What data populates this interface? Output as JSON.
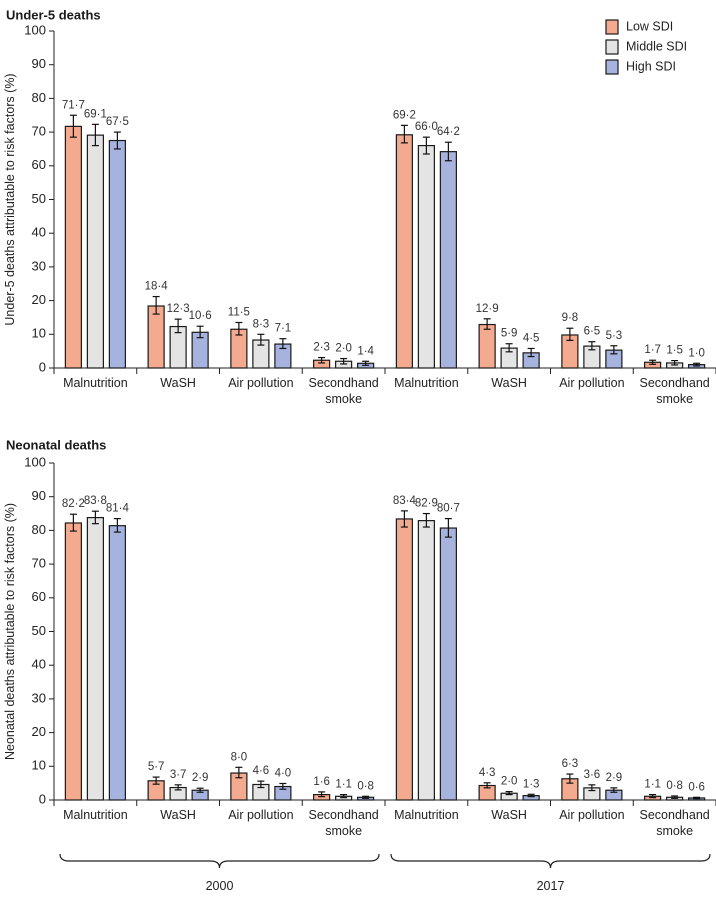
{
  "chart_data": [
    {
      "type": "bar",
      "title": "Under-5 deaths",
      "ylabel": "Under-5 deaths attributable to risk factors (%)",
      "ylim": [
        0,
        100
      ],
      "yticks": [
        0,
        10,
        20,
        30,
        40,
        50,
        60,
        70,
        80,
        90,
        100
      ],
      "categories": [
        "Malnutrition",
        "WaSH",
        "Air pollution",
        "Secondhand smoke",
        "Malnutrition",
        "WaSH",
        "Air pollution",
        "Secondhand smoke"
      ],
      "groups": [
        {
          "label": "2000",
          "categories": [
            0,
            1,
            2,
            3
          ]
        },
        {
          "label": "2017",
          "categories": [
            4,
            5,
            6,
            7
          ]
        }
      ],
      "series": [
        {
          "name": "Low SDI",
          "color": "#f4aa8f",
          "values": [
            71.7,
            18.4,
            11.5,
            2.3,
            69.2,
            12.9,
            9.8,
            1.7
          ],
          "labels": [
            "71·7",
            "18·4",
            "11·5",
            "2·3",
            "69·2",
            "12·9",
            "9·8",
            "1·7"
          ],
          "err_low": [
            68.5,
            16.0,
            9.8,
            1.5,
            66.8,
            11.5,
            8.2,
            1.1
          ],
          "err_high": [
            75.0,
            21.2,
            13.5,
            3.1,
            72.0,
            14.6,
            11.8,
            2.3
          ]
        },
        {
          "name": "Middle SDI",
          "color": "#e4e4e4",
          "values": [
            69.1,
            12.3,
            8.3,
            2.0,
            66.0,
            5.9,
            6.5,
            1.5
          ],
          "labels": [
            "69·1",
            "12·3",
            "8·3",
            "2·0",
            "66·0",
            "5·9",
            "6·5",
            "1·5"
          ],
          "err_low": [
            66.0,
            10.5,
            6.8,
            1.2,
            63.5,
            4.8,
            5.4,
            0.9
          ],
          "err_high": [
            72.3,
            14.5,
            10.0,
            2.8,
            68.5,
            7.2,
            7.8,
            2.2
          ]
        },
        {
          "name": "High SDI",
          "color": "#a6b3de",
          "values": [
            67.5,
            10.6,
            7.1,
            1.4,
            64.2,
            4.5,
            5.3,
            1.0
          ],
          "labels": [
            "67·5",
            "10·6",
            "7·1",
            "1·4",
            "64·2",
            "4·5",
            "5·3",
            "1·0"
          ],
          "err_low": [
            65.0,
            9.0,
            5.8,
            0.8,
            61.5,
            3.4,
            4.2,
            0.6
          ],
          "err_high": [
            70.0,
            12.4,
            8.7,
            2.0,
            67.0,
            5.8,
            6.6,
            1.4
          ]
        }
      ]
    },
    {
      "type": "bar",
      "title": "Neonatal deaths",
      "ylabel": "Neonatal deaths attributable to risk factors (%)",
      "ylim": [
        0,
        100
      ],
      "yticks": [
        0,
        10,
        20,
        30,
        40,
        50,
        60,
        70,
        80,
        90,
        100
      ],
      "categories": [
        "Malnutrition",
        "WaSH",
        "Air pollution",
        "Secondhand smoke",
        "Malnutrition",
        "WaSH",
        "Air pollution",
        "Secondhand smoke"
      ],
      "groups": [
        {
          "label": "2000",
          "categories": [
            0,
            1,
            2,
            3
          ]
        },
        {
          "label": "2017",
          "categories": [
            4,
            5,
            6,
            7
          ]
        }
      ],
      "series": [
        {
          "name": "Low SDI",
          "color": "#f4aa8f",
          "values": [
            82.2,
            5.7,
            8.0,
            1.6,
            83.4,
            4.3,
            6.3,
            1.1
          ],
          "labels": [
            "82·2",
            "5·7",
            "8·0",
            "1·6",
            "83·4",
            "4·3",
            "6·3",
            "1·1"
          ],
          "err_low": [
            79.8,
            4.7,
            6.6,
            1.0,
            81.0,
            3.6,
            5.0,
            0.7
          ],
          "err_high": [
            84.8,
            6.8,
            9.7,
            2.4,
            85.8,
            5.1,
            7.7,
            1.6
          ]
        },
        {
          "name": "Middle SDI",
          "color": "#e4e4e4",
          "values": [
            83.8,
            3.7,
            4.6,
            1.1,
            82.9,
            2.0,
            3.6,
            0.8
          ],
          "labels": [
            "83·8",
            "3·7",
            "4·6",
            "1·1",
            "82·9",
            "2·0",
            "3·6",
            "0·8"
          ],
          "err_low": [
            82.0,
            3.0,
            3.7,
            0.7,
            81.0,
            1.6,
            2.8,
            0.5
          ],
          "err_high": [
            85.7,
            4.5,
            5.6,
            1.6,
            85.0,
            2.5,
            4.5,
            1.2
          ]
        },
        {
          "name": "High SDI",
          "color": "#a6b3de",
          "values": [
            81.4,
            2.9,
            4.0,
            0.8,
            80.7,
            1.3,
            2.9,
            0.6
          ],
          "labels": [
            "81·4",
            "2·9",
            "4·0",
            "0·8",
            "80·7",
            "1·3",
            "2·9",
            "0·6"
          ],
          "err_low": [
            79.5,
            2.3,
            3.2,
            0.5,
            78.0,
            1.0,
            2.3,
            0.4
          ],
          "err_high": [
            83.5,
            3.5,
            4.9,
            1.1,
            83.5,
            1.7,
            3.6,
            0.8
          ]
        }
      ]
    }
  ]
}
